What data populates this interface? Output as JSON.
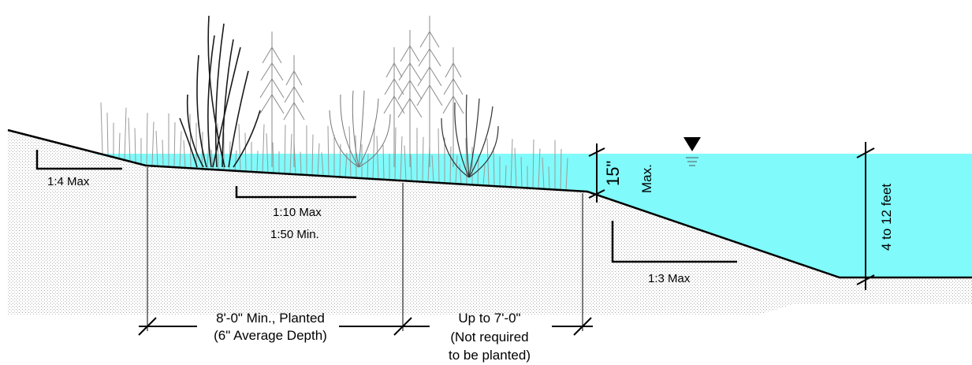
{
  "colors": {
    "water": "#80FAFA",
    "soil_stipple": "#9a9a9a",
    "line": "#000000",
    "plants": "#8a8a8a",
    "reeds": "#222222"
  },
  "slopes": {
    "bank_slope": "1:4 Max",
    "shelf_max": "1:10 Max",
    "shelf_min": "1:50 Min.",
    "pond_slope": "1:3 Max"
  },
  "depths": {
    "shelf_depth": "15\"",
    "shelf_depth_qualifier": "Max.",
    "pond_depth": "4 to 12 feet"
  },
  "symbols": {
    "water_surface": "water-surface-symbol"
  },
  "dimensions": {
    "planted_line1": "8'-0\" Min., Planted",
    "planted_line2": "(6\" Average Depth)",
    "unplanted_line1": "Up to 7'-0\"",
    "unplanted_line2": "(Not required",
    "unplanted_line3": "to be planted)"
  }
}
